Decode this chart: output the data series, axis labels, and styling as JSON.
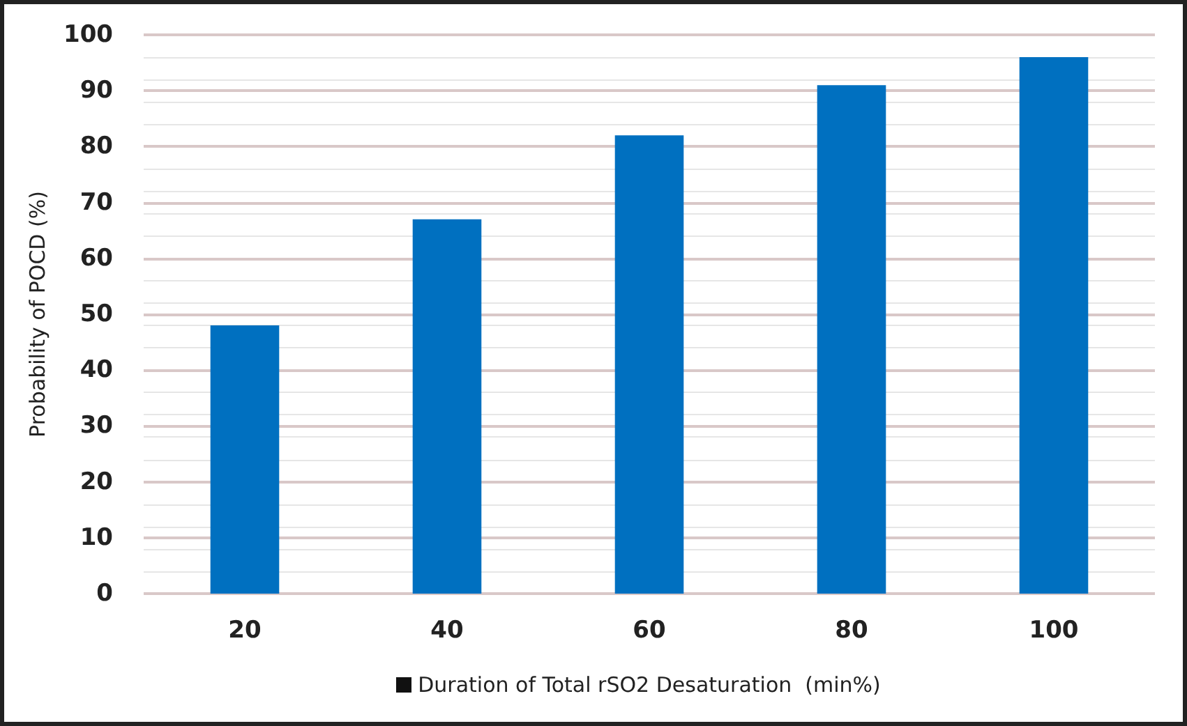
{
  "chart_data": {
    "type": "bar",
    "xlabel": "Duration of Total rSO2 Desaturation  (min%)",
    "ylabel": "Probability of POCD (%)",
    "categories": [
      "20",
      "40",
      "60",
      "80",
      "100"
    ],
    "values": [
      48,
      67,
      82,
      91,
      96
    ],
    "color": "#0070c0",
    "ylim": [
      0,
      100
    ],
    "yticks": [
      0,
      10,
      20,
      30,
      40,
      50,
      60,
      70,
      80,
      90,
      100
    ],
    "grid": "y"
  }
}
